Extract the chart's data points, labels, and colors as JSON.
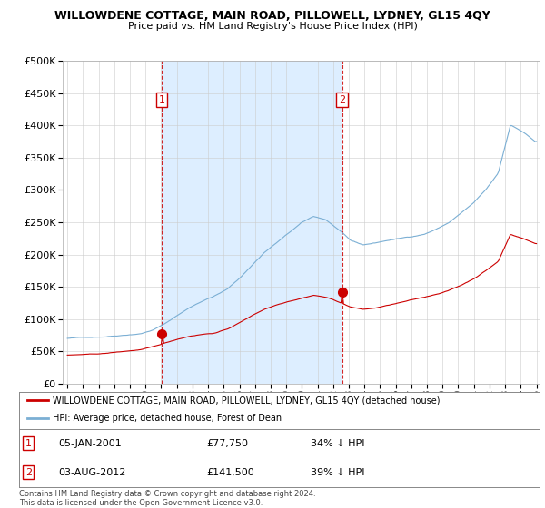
{
  "title": "WILLOWDENE COTTAGE, MAIN ROAD, PILLOWELL, LYDNEY, GL15 4QY",
  "subtitle": "Price paid vs. HM Land Registry's House Price Index (HPI)",
  "legend_line1": "WILLOWDENE COTTAGE, MAIN ROAD, PILLOWELL, LYDNEY, GL15 4QY (detached house)",
  "legend_line2": "HPI: Average price, detached house, Forest of Dean",
  "footnote": "Contains HM Land Registry data © Crown copyright and database right 2024.\nThis data is licensed under the Open Government Licence v3.0.",
  "transaction1_date": "05-JAN-2001",
  "transaction1_price": "£77,750",
  "transaction1_hpi": "34% ↓ HPI",
  "transaction2_date": "03-AUG-2012",
  "transaction2_price": "£141,500",
  "transaction2_hpi": "39% ↓ HPI",
  "hpi_color": "#7bafd4",
  "price_color": "#cc0000",
  "shade_color": "#ddeeff",
  "ylim_max": 500000,
  "ylim_min": 0,
  "yticks": [
    0,
    50000,
    100000,
    150000,
    200000,
    250000,
    300000,
    350000,
    400000,
    450000,
    500000
  ],
  "transaction1_x": 2001.042,
  "transaction1_y": 77750,
  "transaction2_x": 2012.583,
  "transaction2_y": 141500,
  "vline1_x": 2001.042,
  "vline2_x": 2012.583,
  "xmin": 1994.7,
  "xmax": 2025.2
}
